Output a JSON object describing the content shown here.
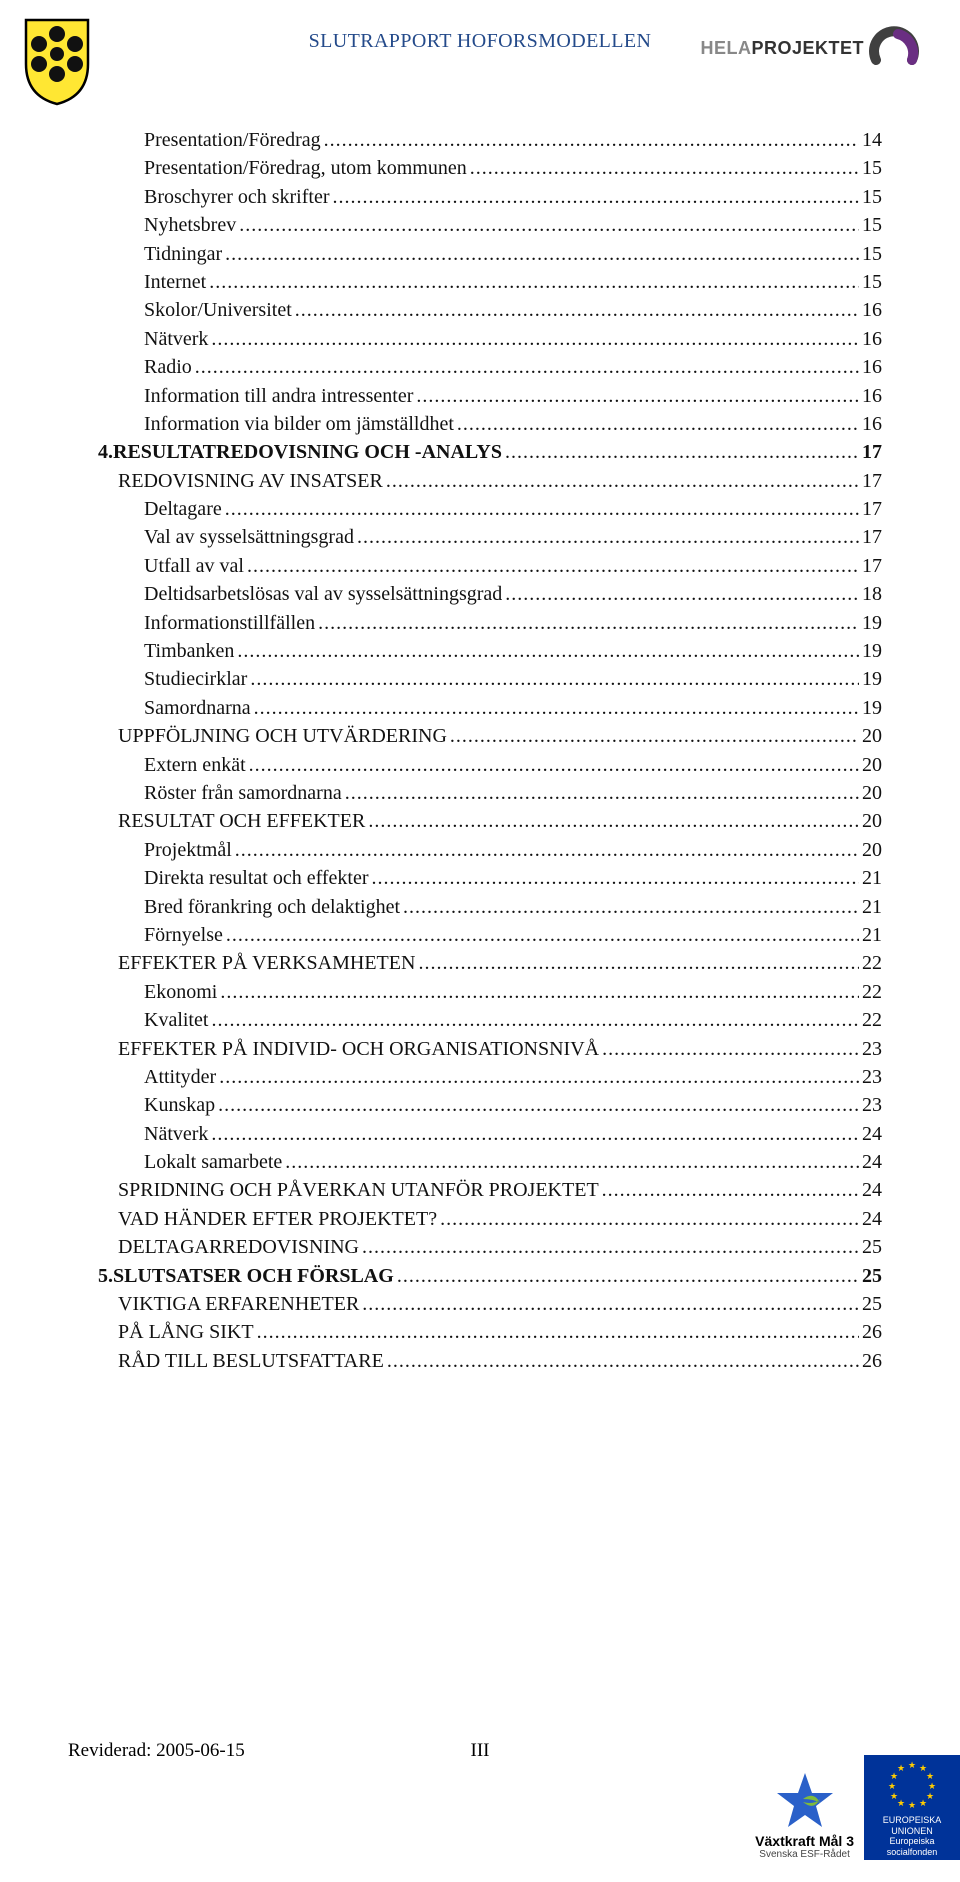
{
  "header": {
    "title": "SLUTRAPPORT HOFORSMODELLEN",
    "title_color": "#244a8a",
    "crest_colors": {
      "shield_fill": "#ffe733",
      "shield_stroke": "#000000",
      "flower": "#111111"
    },
    "right_logo": {
      "text_grey": "HELA",
      "text_dark": "PROJEKTET",
      "arc_dark": "#404040",
      "arc_purple": "#6a2e82"
    }
  },
  "toc": [
    {
      "text": "Presentation/Föredrag",
      "page": "14",
      "level": 3
    },
    {
      "text": "Presentation/Föredrag, utom kommunen",
      "page": "15",
      "level": 3
    },
    {
      "text": "Broschyrer och skrifter",
      "page": "15",
      "level": 3
    },
    {
      "text": "Nyhetsbrev",
      "page": "15",
      "level": 3
    },
    {
      "text": "Tidningar",
      "page": "15",
      "level": 3
    },
    {
      "text": "Internet",
      "page": "15",
      "level": 3
    },
    {
      "text": "Skolor/Universitet",
      "page": "16",
      "level": 3
    },
    {
      "text": "Nätverk",
      "page": "16",
      "level": 3
    },
    {
      "text": "Radio",
      "page": "16",
      "level": 3
    },
    {
      "text": "Information till andra intressenter",
      "page": "16",
      "level": 3
    },
    {
      "text": "Information via bilder om jämställdhet",
      "page": "16",
      "level": 3
    },
    {
      "num": "4.",
      "text": "RESULTATREDOVISNING OCH -ANALYS",
      "page": "17",
      "level": 1,
      "bold": true,
      "smallcaps": true
    },
    {
      "text": "REDOVISNING AV INSATSER",
      "page": "17",
      "level": 2,
      "smallcaps": true
    },
    {
      "text": "Deltagare",
      "page": "17",
      "level": 3
    },
    {
      "text": "Val av sysselsättningsgrad",
      "page": "17",
      "level": 3
    },
    {
      "text": "Utfall av val",
      "page": "17",
      "level": 3
    },
    {
      "text": "Deltidsarbetslösas val av sysselsättningsgrad",
      "page": "18",
      "level": 3
    },
    {
      "text": "Informationstillfällen",
      "page": "19",
      "level": 3
    },
    {
      "text": "Timbanken",
      "page": "19",
      "level": 3
    },
    {
      "text": "Studiecirklar",
      "page": "19",
      "level": 3
    },
    {
      "text": "Samordnarna",
      "page": "19",
      "level": 3
    },
    {
      "text": "UPPFÖLJNING OCH UTVÄRDERING",
      "page": "20",
      "level": 2,
      "smallcaps": true
    },
    {
      "text": "Extern enkät",
      "page": "20",
      "level": 3
    },
    {
      "text": "Röster från samordnarna",
      "page": "20",
      "level": 3
    },
    {
      "text": "RESULTAT OCH EFFEKTER",
      "page": "20",
      "level": 2,
      "smallcaps": true
    },
    {
      "text": "Projektmål",
      "page": "20",
      "level": 3
    },
    {
      "text": "Direkta resultat och effekter",
      "page": "21",
      "level": 3
    },
    {
      "text": "Bred förankring och delaktighet",
      "page": "21",
      "level": 3
    },
    {
      "text": "Förnyelse",
      "page": "21",
      "level": 3
    },
    {
      "text": "EFFEKTER PÅ VERKSAMHETEN",
      "page": "22",
      "level": 2,
      "smallcaps": true
    },
    {
      "text": "Ekonomi",
      "page": "22",
      "level": 3
    },
    {
      "text": "Kvalitet",
      "page": "22",
      "level": 3
    },
    {
      "text": "EFFEKTER PÅ INDIVID- OCH ORGANISATIONSNIVÅ",
      "page": "23",
      "level": 2,
      "smallcaps": true
    },
    {
      "text": "Attityder",
      "page": "23",
      "level": 3
    },
    {
      "text": "Kunskap",
      "page": "23",
      "level": 3
    },
    {
      "text": "Nätverk",
      "page": "24",
      "level": 3
    },
    {
      "text": "Lokalt samarbete",
      "page": "24",
      "level": 3
    },
    {
      "text": "SPRIDNING OCH PÅVERKAN UTANFÖR PROJEKTET",
      "page": "24",
      "level": 2,
      "smallcaps": true
    },
    {
      "text": "VAD HÄNDER EFTER PROJEKTET?",
      "page": "24",
      "level": 2,
      "smallcaps": true
    },
    {
      "text": "DELTAGARREDOVISNING",
      "page": "25",
      "level": 2,
      "smallcaps": true
    },
    {
      "num": "5.",
      "text": "SLUTSATSER OCH FÖRSLAG",
      "page": "25",
      "level": 1,
      "bold": true,
      "smallcaps": true
    },
    {
      "text": "VIKTIGA ERFARENHETER",
      "page": "25",
      "level": 2,
      "smallcaps": true
    },
    {
      "text": "PÅ LÅNG SIKT",
      "page": "26",
      "level": 2,
      "smallcaps": true
    },
    {
      "text": "RÅD TILL BESLUTSFATTARE",
      "page": "26",
      "level": 2,
      "smallcaps": true
    }
  ],
  "footer": {
    "revised": "Reviderad: 2005-06-15",
    "page_no": "III",
    "mal3": {
      "line1": "Växtkraft Mål 3",
      "line2": "Svenska ESF-Rådet",
      "star_color": "#2a60c9",
      "leaf_color": "#7fba3c"
    },
    "eu": {
      "line1": "EUROPEISKA UNIONEN",
      "line2": "Europeiska socialfonden",
      "bg": "#003399",
      "star": "#ffcc00"
    }
  }
}
